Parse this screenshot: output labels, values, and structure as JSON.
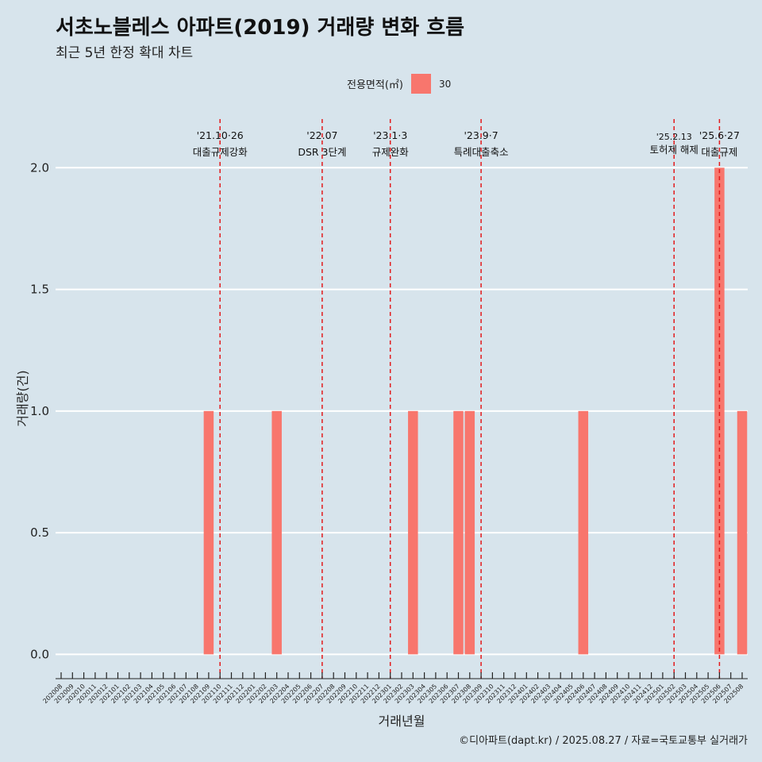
{
  "title": "서초노블레스 아파트(2019) 거래량 변화 흐름",
  "subtitle": "최근 5년 한정 확대 차트",
  "caption": "©디아파트(dapt.kr) / 2025.08.27 / 자료=국토교통부 실거래가",
  "legend": {
    "title": "전용면적(㎡)",
    "label": "30"
  },
  "colors": {
    "bar": "#f8766d",
    "event_line": "#e31a1c",
    "background": "#d7e4ec",
    "grid": "#ffffff"
  },
  "chart_data": {
    "type": "bar",
    "title": "서초노블레스 아파트(2019) 거래량 변화 흐름",
    "subtitle": "최근 5년 한정 확대 차트",
    "xlabel": "거래년월",
    "ylabel": "거래량(건)",
    "ylim": [
      -0.1,
      2.2
    ],
    "yticks": [
      "0.0",
      "0.5",
      "1.0",
      "1.5",
      "2.0"
    ],
    "grid": true,
    "legend_position": "top",
    "categories": [
      "202008",
      "202009",
      "202010",
      "202011",
      "202012",
      "202101",
      "202102",
      "202103",
      "202104",
      "202105",
      "202106",
      "202107",
      "202108",
      "202109",
      "202110",
      "202111",
      "202112",
      "202201",
      "202202",
      "202203",
      "202204",
      "202205",
      "202206",
      "202207",
      "202208",
      "202209",
      "202210",
      "202211",
      "202212",
      "202301",
      "202302",
      "202303",
      "202304",
      "202305",
      "202306",
      "202307",
      "202308",
      "202309",
      "202310",
      "202311",
      "202312",
      "202401",
      "202402",
      "202403",
      "202404",
      "202405",
      "202406",
      "202407",
      "202408",
      "202409",
      "202410",
      "202411",
      "202412",
      "202501",
      "202502",
      "202503",
      "202504",
      "202505",
      "202506",
      "202507",
      "202508"
    ],
    "series": [
      {
        "name": "30",
        "bars": [
          {
            "x": "202109",
            "value": 1
          },
          {
            "x": "202203",
            "value": 1
          },
          {
            "x": "202303",
            "value": 1
          },
          {
            "x": "202307",
            "value": 1
          },
          {
            "x": "202308",
            "value": 1
          },
          {
            "x": "202406",
            "value": 1
          },
          {
            "x": "202506",
            "value": 2
          },
          {
            "x": "202508",
            "value": 1
          }
        ]
      }
    ],
    "annotations": [
      {
        "x": "202110",
        "date": "'21.10·26",
        "label": "대출규제강화"
      },
      {
        "x": "202207",
        "date": "'22.07",
        "label": "DSR 3단계"
      },
      {
        "x": "202301",
        "date": "'23.1·3",
        "label": "규제완화"
      },
      {
        "x": "202309",
        "date": "'23.9·7",
        "label": "특례대출축소"
      },
      {
        "x": "202502",
        "date": "'25.2.13",
        "label": "토허제 해제"
      },
      {
        "x": "202506",
        "date": "'25.6·27",
        "label": "대출규제"
      }
    ]
  }
}
